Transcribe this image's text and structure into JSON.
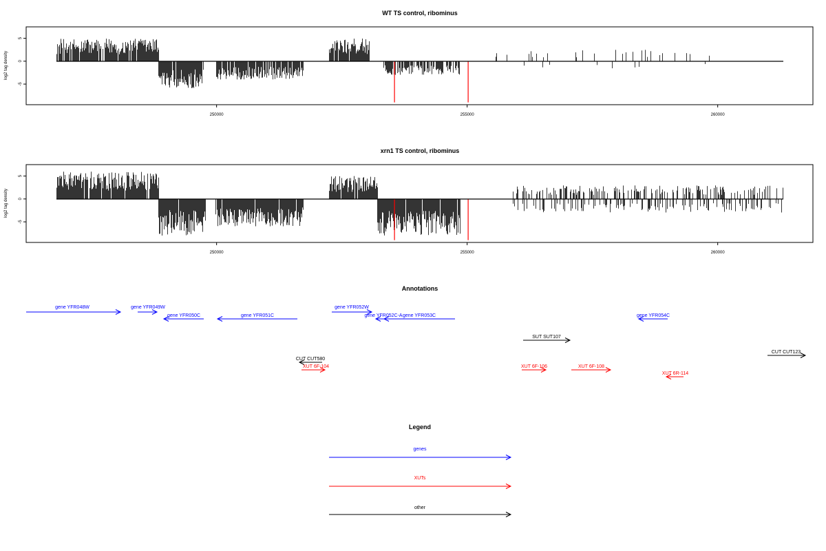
{
  "chart_data": [
    {
      "type": "bar",
      "title": "WT TS control, ribominus",
      "ylabel": "log2 tag density",
      "xlim": [
        246200,
        261900
      ],
      "ylim": [
        -9.5,
        7.5
      ],
      "x_ticks": [
        "250000",
        "255000",
        "260000"
      ],
      "y_ticks": [
        "5",
        "0",
        "-5"
      ],
      "highlight": [
        {
          "x": 253550,
          "value": -9,
          "color": "#ff0000"
        },
        {
          "x": 255020,
          "value": -9,
          "color": "#ff0000"
        }
      ]
    },
    {
      "type": "bar",
      "title": "xrn1 TS control, ribominus",
      "ylabel": "log2 tag density",
      "xlim": [
        246200,
        261900
      ],
      "ylim": [
        -9.5,
        7.5
      ],
      "x_ticks": [
        "250000",
        "255000",
        "260000"
      ],
      "y_ticks": [
        "5",
        "0",
        "-5"
      ],
      "highlight": [
        {
          "x": 253550,
          "value": -9,
          "color": "#ff0000"
        },
        {
          "x": 255020,
          "value": -9,
          "color": "#ff0000"
        }
      ]
    }
  ],
  "annotations": {
    "title": "Annotations",
    "items": [
      {
        "label": "gene YFR048W",
        "color": "#0000ff"
      },
      {
        "label": "gene YFR049W",
        "color": "#0000ff"
      },
      {
        "label": "gene YFR050C",
        "color": "#0000ff"
      },
      {
        "label": "gene YFR051C",
        "color": "#0000ff"
      },
      {
        "label": "gene YFR052W",
        "color": "#0000ff"
      },
      {
        "label": "gene YFR052C-A",
        "color": "#0000ff"
      },
      {
        "label": "gene YFR053C",
        "color": "#0000ff"
      },
      {
        "label": "gene YFR054C",
        "color": "#0000ff"
      },
      {
        "label": "SUT SUT107",
        "color": "#000000"
      },
      {
        "label": "CUT CUT580",
        "color": "#000000"
      },
      {
        "label": "CUT CUT123",
        "color": "#000000"
      },
      {
        "label": "XUT 6F-104",
        "color": "#ff0000"
      },
      {
        "label": "XUT 6F-106",
        "color": "#ff0000"
      },
      {
        "label": "XUT 6F-108",
        "color": "#ff0000"
      },
      {
        "label": "XUT 6R-114",
        "color": "#ff0000"
      }
    ]
  },
  "legend": {
    "title": "Legend",
    "items": [
      {
        "label": "genes",
        "color": "#0000ff"
      },
      {
        "label": "XUTs",
        "color": "#ff0000"
      },
      {
        "label": "other",
        "color": "#000000"
      }
    ]
  }
}
